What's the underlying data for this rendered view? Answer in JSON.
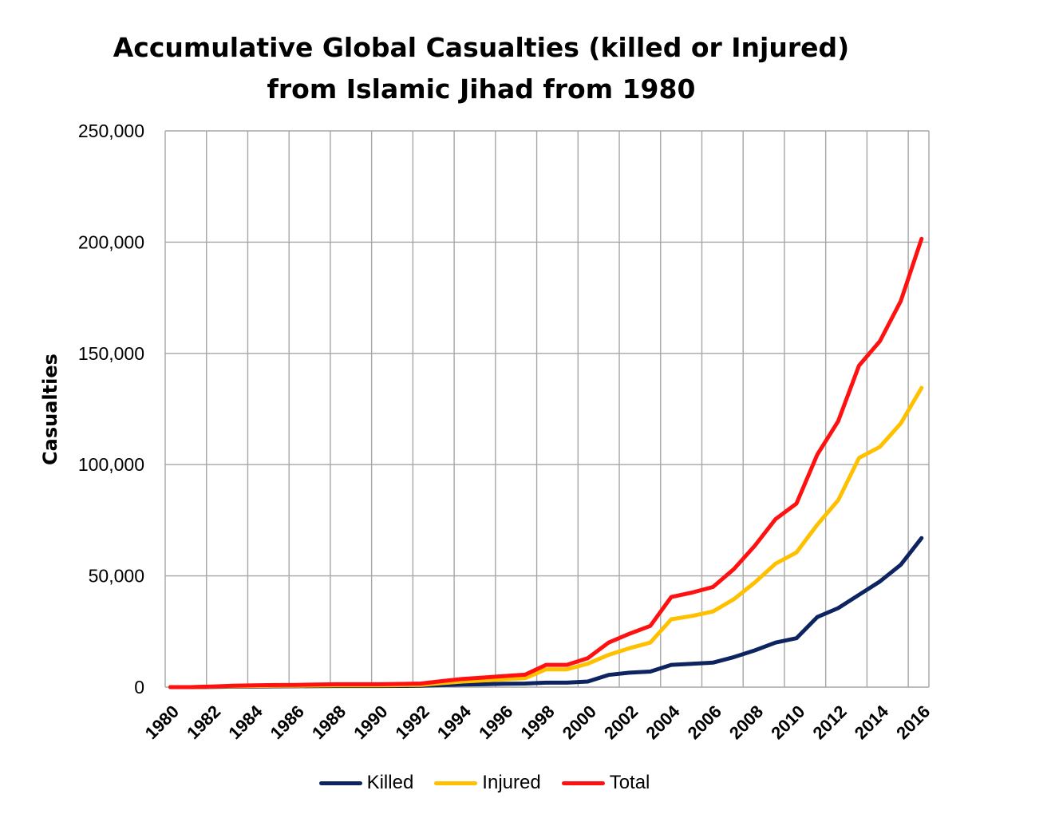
{
  "chart_data": {
    "type": "line",
    "title_lines": [
      "Accumulative Global Casualties (killed or Injured)",
      "from Islamic Jihad from 1980"
    ],
    "xlabel": "",
    "ylabel": "Casualties",
    "ylim": [
      0,
      250000
    ],
    "y_ticks": [
      0,
      50000,
      100000,
      150000,
      200000,
      250000
    ],
    "y_tick_labels": [
      "0",
      "50,000",
      "100,000",
      "150,000",
      "200,000",
      "250,000"
    ],
    "x_tick_labels": [
      "1980",
      "1982",
      "1984",
      "1986",
      "1988",
      "1990",
      "1992",
      "1994",
      "1996",
      "1998",
      "2000",
      "2002",
      "2004",
      "2006",
      "2008",
      "2010",
      "2012",
      "2014",
      "2016"
    ],
    "grid": true,
    "legend_position": "bottom",
    "x": [
      1980,
      1981,
      1982,
      1983,
      1984,
      1985,
      1986,
      1987,
      1988,
      1989,
      1990,
      1991,
      1992,
      1993,
      1994,
      1995,
      1996,
      1997,
      1998,
      1999,
      2000,
      2001,
      2002,
      2003,
      2004,
      2005,
      2006,
      2007,
      2008,
      2009,
      2010,
      2011,
      2012,
      2013,
      2014,
      2015,
      2016
    ],
    "series": [
      {
        "name": "Killed",
        "color": "#0d2461",
        "values": [
          0,
          0,
          100,
          200,
          300,
          350,
          400,
          450,
          500,
          500,
          500,
          550,
          600,
          900,
          1200,
          1300,
          1500,
          1600,
          2000,
          2000,
          2500,
          5500,
          6500,
          7000,
          10000,
          10500,
          11000,
          13500,
          16500,
          20000,
          22000,
          31500,
          35500,
          41500,
          47500,
          55000,
          67000
        ]
      },
      {
        "name": "Injured",
        "color": "#ffc000",
        "values": [
          0,
          0,
          200,
          400,
          500,
          600,
          600,
          700,
          800,
          800,
          800,
          900,
          1000,
          1800,
          2500,
          3000,
          3500,
          4000,
          8000,
          8000,
          10500,
          14500,
          17500,
          20000,
          30500,
          32000,
          34000,
          39500,
          47000,
          55500,
          60500,
          73000,
          84000,
          103000,
          108000,
          118500,
          134500
        ]
      },
      {
        "name": "Total",
        "color": "#ff1111",
        "values": [
          0,
          0,
          300,
          600,
          800,
          950,
          1000,
          1150,
          1300,
          1300,
          1300,
          1450,
          1600,
          2700,
          3700,
          4300,
          5000,
          5600,
          10000,
          10000,
          13000,
          20000,
          24000,
          27500,
          40500,
          42500,
          45000,
          53000,
          63500,
          75500,
          82500,
          104500,
          119500,
          144500,
          155500,
          173500,
          201500
        ]
      }
    ]
  }
}
